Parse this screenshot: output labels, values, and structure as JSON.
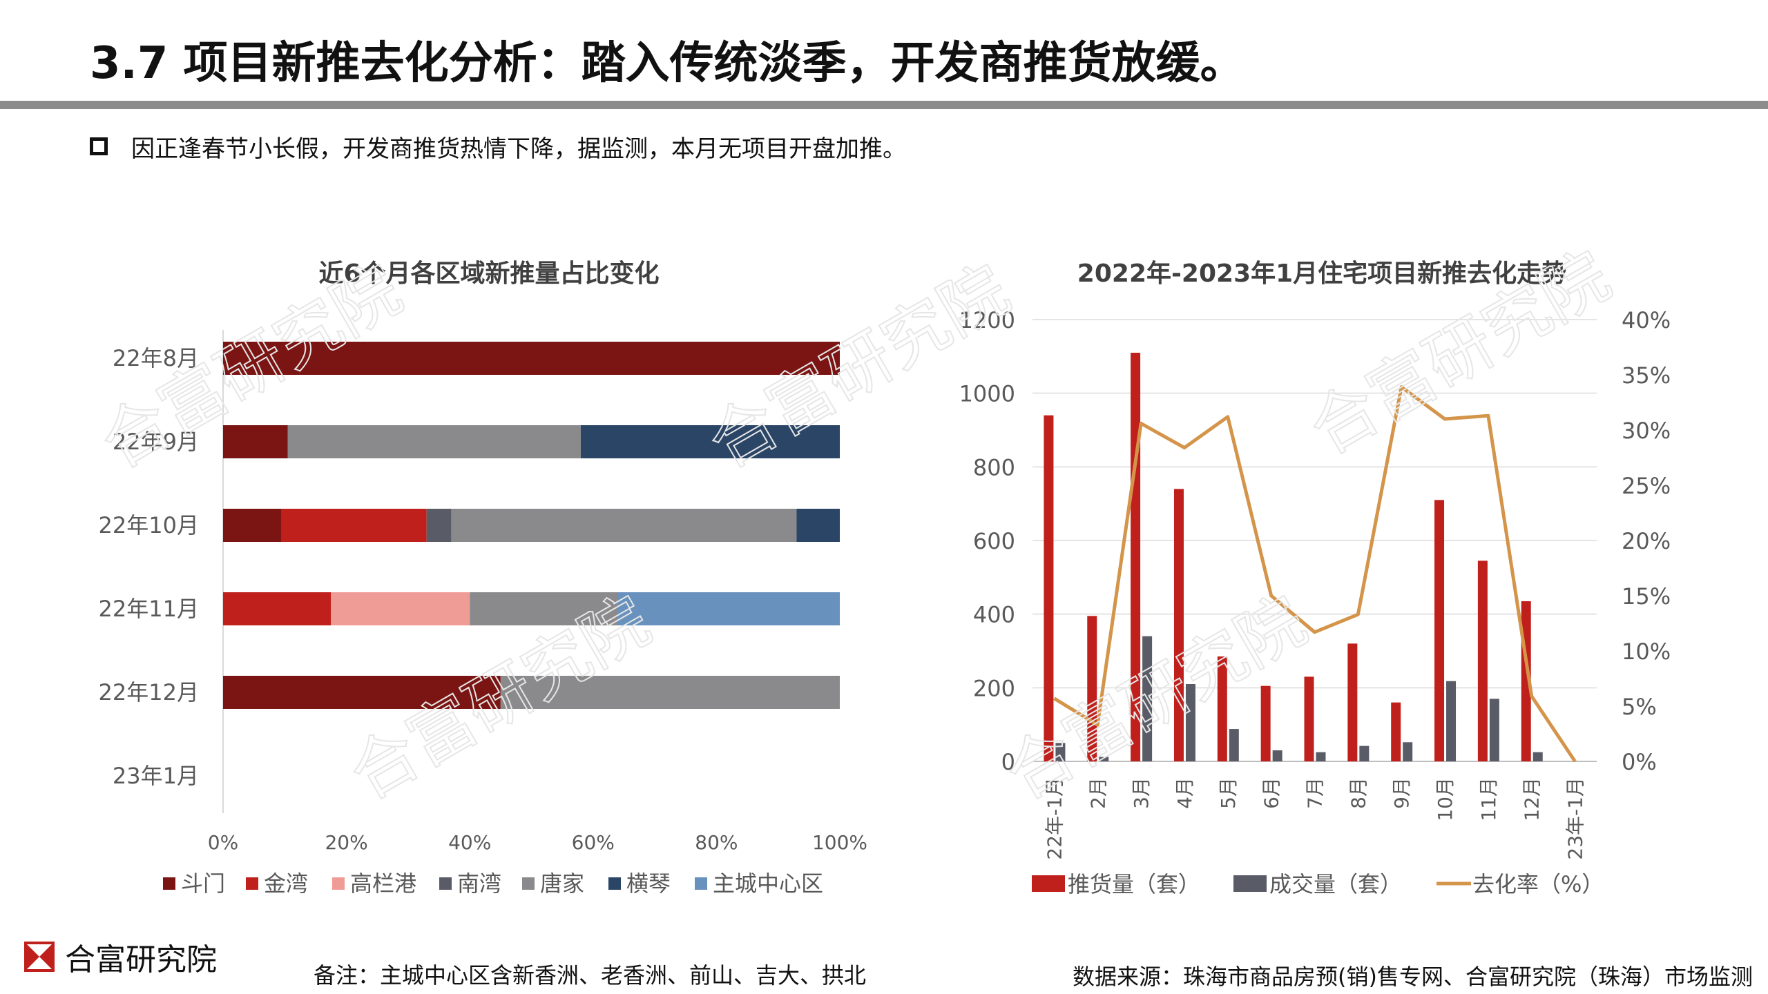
{
  "header": {
    "title": "3.7 项目新推去化分析：踏入传统淡季，开发商推货放缓。",
    "bullet": "因正逢春节小长假，开发商推货热情下降，据监测，本月无项目开盘加推。"
  },
  "footer": {
    "logo_text": "合富研究院",
    "note": "备注：主城中心区含新香洲、老香洲、前山、吉大、拱北",
    "source": "数据来源：珠海市商品房预(销)售专网、合富研究院（珠海）市场监测"
  },
  "watermark": "合富研究院",
  "chart_data": [
    {
      "type": "bar",
      "orientation": "horizontal",
      "stacked": "percent",
      "title": "近6个月各区域新推量占比变化",
      "categories": [
        "22年8月",
        "22年9月",
        "22年10月",
        "22年11月",
        "22年12月",
        "23年1月"
      ],
      "x_ticks": [
        "0%",
        "20%",
        "40%",
        "60%",
        "80%",
        "100%"
      ],
      "xlim": [
        0,
        100
      ],
      "legend_position": "bottom",
      "grid": false,
      "series": [
        {
          "name": "斗门",
          "color": "#7b1513",
          "values": [
            100,
            10.5,
            9.5,
            0,
            45,
            0
          ]
        },
        {
          "name": "金湾",
          "color": "#c0201c",
          "values": [
            0,
            0,
            23.5,
            17.5,
            0,
            0
          ]
        },
        {
          "name": "高栏港",
          "color": "#f09c96",
          "values": [
            0,
            0,
            0,
            22.5,
            0,
            0
          ]
        },
        {
          "name": "南湾",
          "color": "#595c66",
          "values": [
            0,
            0,
            4,
            0,
            0,
            0
          ]
        },
        {
          "name": "唐家",
          "color": "#8a8a8d",
          "values": [
            0,
            47.5,
            56,
            24,
            55,
            0
          ]
        },
        {
          "name": "横琴",
          "color": "#2a4566",
          "values": [
            0,
            42,
            7,
            0,
            0,
            0
          ]
        },
        {
          "name": "主城中心区",
          "color": "#6891bd",
          "values": [
            0,
            0,
            0,
            36,
            0,
            0
          ]
        }
      ]
    },
    {
      "type": "bar+line",
      "title": "2022年-2023年1月住宅项目新推去化走势",
      "categories": [
        "22年-1月",
        "2月",
        "3月",
        "4月",
        "5月",
        "6月",
        "7月",
        "8月",
        "9月",
        "10月",
        "11月",
        "12月",
        "23年-1月"
      ],
      "ylim_left": [
        0,
        1200
      ],
      "y_ticks_left": [
        "0",
        "200",
        "400",
        "600",
        "800",
        "1000",
        "1200"
      ],
      "ylim_right": [
        0,
        40
      ],
      "y_ticks_right": [
        "0%",
        "5%",
        "10%",
        "15%",
        "20%",
        "25%",
        "30%",
        "35%",
        "40%"
      ],
      "grid": true,
      "legend_position": "bottom",
      "series": [
        {
          "name": "推货量（套）",
          "type": "bar",
          "axis": "left",
          "color": "#c0201c",
          "values": [
            940,
            395,
            1110,
            740,
            285,
            205,
            230,
            320,
            160,
            710,
            545,
            435,
            0
          ]
        },
        {
          "name": "成交量（套）",
          "type": "bar",
          "axis": "left",
          "color": "#595c66",
          "values": [
            50,
            12,
            340,
            210,
            88,
            30,
            25,
            42,
            52,
            218,
            170,
            25,
            0
          ]
        },
        {
          "name": "去化率（%）",
          "type": "line",
          "axis": "right",
          "color": "#d4944a",
          "values": [
            5.7,
            3.3,
            30.6,
            28.4,
            31.2,
            15.0,
            11.7,
            13.3,
            33.9,
            31.0,
            31.3,
            5.9,
            0
          ]
        }
      ]
    }
  ]
}
